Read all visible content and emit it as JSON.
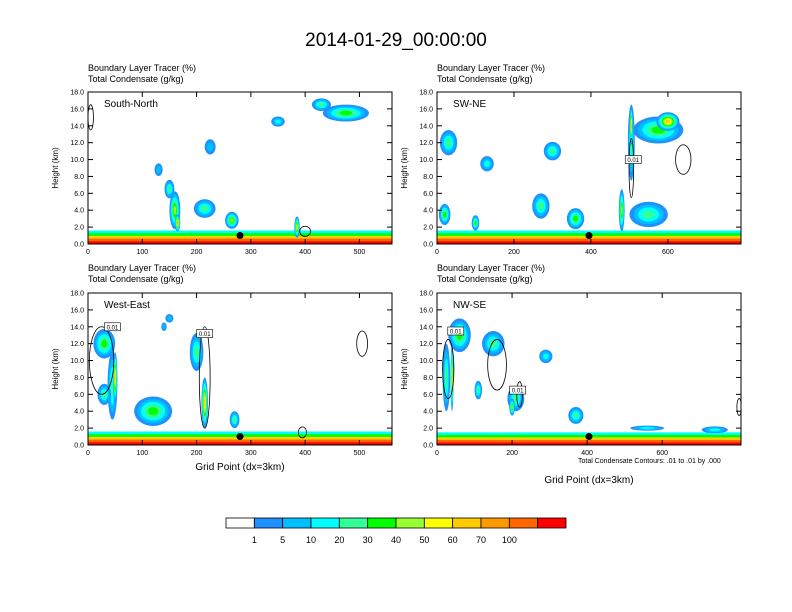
{
  "figure": {
    "title": "2014-01-29_00:00:00",
    "contour_note": "Total Condensate Contours: .01 to .01 by .000"
  },
  "colors": {
    "scale": [
      "#ffffff",
      "#1e90ff",
      "#00bfff",
      "#00ffff",
      "#33ff99",
      "#00ff00",
      "#99ff33",
      "#ffff00",
      "#ffcc00",
      "#ff9900",
      "#ff6600",
      "#ff0000"
    ],
    "contour": "#000000",
    "marker": "#000000"
  },
  "chart_data": [
    {
      "type": "heatmap",
      "label": "South-North",
      "field_label": "Boundary Layer Tracer   (%)",
      "contour_label": "Total Condensate   (g/kg)",
      "ylabel": "Height (km)",
      "xlabel": "",
      "xlim": [
        0,
        560
      ],
      "ylim": [
        0,
        18
      ],
      "xticks": [
        "0",
        "100",
        "200",
        "300",
        "400",
        "500"
      ],
      "yticks": [
        "0.0",
        "2.0",
        "4.0",
        "6.0",
        "8.0",
        "10.0",
        "12.0",
        "14.0",
        "16.0",
        "18.0"
      ],
      "marker": {
        "x": 280,
        "y": 1.0
      },
      "surface_band_top": 1.6,
      "blobs": [
        {
          "x": 160,
          "y": 4.0,
          "w": 20,
          "h": 4.5,
          "level": 6
        },
        {
          "x": 165,
          "y": 2.5,
          "w": 10,
          "h": 2.0,
          "level": 9
        },
        {
          "x": 150,
          "y": 6.5,
          "w": 18,
          "h": 2.2,
          "level": 4
        },
        {
          "x": 215,
          "y": 4.2,
          "w": 40,
          "h": 2.2,
          "level": 4
        },
        {
          "x": 265,
          "y": 2.8,
          "w": 25,
          "h": 2.0,
          "level": 6
        },
        {
          "x": 225,
          "y": 11.5,
          "w": 20,
          "h": 1.8,
          "level": 2
        },
        {
          "x": 130,
          "y": 8.8,
          "w": 15,
          "h": 1.5,
          "level": 2
        },
        {
          "x": 385,
          "y": 2.0,
          "w": 10,
          "h": 2.5,
          "level": 7
        },
        {
          "x": 430,
          "y": 16.5,
          "w": 35,
          "h": 1.5,
          "level": 4
        },
        {
          "x": 475,
          "y": 15.5,
          "w": 85,
          "h": 2.0,
          "level": 5
        },
        {
          "x": 350,
          "y": 14.5,
          "w": 25,
          "h": 1.2,
          "level": 3
        }
      ],
      "contours": [
        {
          "x": 5,
          "y": 15.0,
          "w": 10,
          "h": 3.0
        },
        {
          "x": 400,
          "y": 1.5,
          "w": 20,
          "h": 1.2
        }
      ]
    },
    {
      "type": "heatmap",
      "label": "SW-NE",
      "field_label": "Boundary Layer Tracer   (%)",
      "contour_label": "Total Condensate   (g/kg)",
      "ylabel": "Height (km)",
      "xlabel": "",
      "xlim": [
        0,
        790
      ],
      "ylim": [
        0,
        18
      ],
      "xticks": [
        "0",
        "200",
        "400",
        "600"
      ],
      "yticks": [
        "0.0",
        "2.0",
        "4.0",
        "6.0",
        "8.0",
        "10.0",
        "12.0",
        "14.0",
        "16.0",
        "18.0"
      ],
      "marker": {
        "x": 395,
        "y": 1.0
      },
      "surface_band_top": 1.6,
      "contour_labels": [
        {
          "x": 510,
          "y": 10.0,
          "text": "0.01"
        }
      ],
      "blobs": [
        {
          "x": 575,
          "y": 13.5,
          "w": 130,
          "h": 3.2,
          "level": 5
        },
        {
          "x": 600,
          "y": 14.5,
          "w": 60,
          "h": 2.2,
          "level": 8
        },
        {
          "x": 505,
          "y": 12.0,
          "w": 18,
          "h": 9.0,
          "level": 4
        },
        {
          "x": 505,
          "y": 14.0,
          "w": 8,
          "h": 4.5,
          "level": 9
        },
        {
          "x": 480,
          "y": 4.0,
          "w": 15,
          "h": 5.0,
          "level": 6
        },
        {
          "x": 550,
          "y": 3.5,
          "w": 100,
          "h": 3.0,
          "level": 4
        },
        {
          "x": 30,
          "y": 12.0,
          "w": 45,
          "h": 3.0,
          "level": 4
        },
        {
          "x": 130,
          "y": 9.5,
          "w": 35,
          "h": 1.8,
          "level": 3
        },
        {
          "x": 300,
          "y": 11.0,
          "w": 45,
          "h": 2.2,
          "level": 4
        },
        {
          "x": 270,
          "y": 4.5,
          "w": 45,
          "h": 3.0,
          "level": 4
        },
        {
          "x": 360,
          "y": 3.0,
          "w": 45,
          "h": 2.5,
          "level": 5
        },
        {
          "x": 20,
          "y": 3.5,
          "w": 30,
          "h": 2.5,
          "level": 5
        },
        {
          "x": 100,
          "y": 2.5,
          "w": 20,
          "h": 1.8,
          "level": 5
        }
      ],
      "contours": [
        {
          "x": 640,
          "y": 10.0,
          "w": 40,
          "h": 3.5
        },
        {
          "x": 505,
          "y": 9.0,
          "w": 12,
          "h": 7.0
        }
      ]
    },
    {
      "type": "heatmap",
      "label": "West-East",
      "field_label": "Boundary Layer Tracer   (%)",
      "contour_label": "Total Condensate   (g/kg)",
      "ylabel": "Height (km)",
      "xlabel": "Grid Point (dx=3km)",
      "xlim": [
        0,
        560
      ],
      "ylim": [
        0,
        18
      ],
      "xticks": [
        "0",
        "100",
        "200",
        "300",
        "400",
        "500"
      ],
      "yticks": [
        "0.0",
        "2.0",
        "4.0",
        "6.0",
        "8.0",
        "10.0",
        "12.0",
        "14.0",
        "16.0",
        "18.0"
      ],
      "marker": {
        "x": 280,
        "y": 1.0
      },
      "surface_band_top": 1.6,
      "contour_labels": [
        {
          "x": 45,
          "y": 14.0,
          "text": "0.01"
        },
        {
          "x": 215,
          "y": 13.2,
          "text": "0.01"
        }
      ],
      "blobs": [
        {
          "x": 30,
          "y": 12.0,
          "w": 40,
          "h": 3.5,
          "level": 5
        },
        {
          "x": 45,
          "y": 7.0,
          "w": 18,
          "h": 8.0,
          "level": 4
        },
        {
          "x": 50,
          "y": 8.0,
          "w": 8,
          "h": 6.0,
          "level": 8
        },
        {
          "x": 120,
          "y": 4.0,
          "w": 70,
          "h": 3.5,
          "level": 5
        },
        {
          "x": 30,
          "y": 6.0,
          "w": 25,
          "h": 2.5,
          "level": 4
        },
        {
          "x": 200,
          "y": 11.0,
          "w": 25,
          "h": 4.5,
          "level": 4
        },
        {
          "x": 215,
          "y": 5.0,
          "w": 12,
          "h": 6.0,
          "level": 8
        },
        {
          "x": 150,
          "y": 15.0,
          "w": 15,
          "h": 1.0,
          "level": 2
        },
        {
          "x": 140,
          "y": 14.0,
          "w": 10,
          "h": 1.0,
          "level": 2
        },
        {
          "x": 270,
          "y": 3.0,
          "w": 18,
          "h": 2.0,
          "level": 4
        }
      ],
      "contours": [
        {
          "x": 25,
          "y": 10.0,
          "w": 45,
          "h": 8.0
        },
        {
          "x": 215,
          "y": 8.0,
          "w": 20,
          "h": 12.0
        },
        {
          "x": 505,
          "y": 12.0,
          "w": 20,
          "h": 3.0
        },
        {
          "x": 395,
          "y": 1.5,
          "w": 15,
          "h": 1.3
        }
      ]
    },
    {
      "type": "heatmap",
      "label": "NW-SE",
      "field_label": "Boundary Layer Tracer   (%)",
      "contour_label": "Total Condensate   (g/kg)",
      "ylabel": "Height (km)",
      "xlabel": "Grid Point (dx=3km)",
      "xlim": [
        0,
        810
      ],
      "ylim": [
        0,
        18
      ],
      "xticks": [
        "0",
        "200",
        "400",
        "600"
      ],
      "yticks": [
        "0.0",
        "2.0",
        "4.0",
        "6.0",
        "8.0",
        "10.0",
        "12.0",
        "14.0",
        "16.0",
        "18.0"
      ],
      "marker": {
        "x": 405,
        "y": 1.0
      },
      "surface_band_top": 1.5,
      "contour_labels": [
        {
          "x": 50,
          "y": 13.5,
          "text": "0.01"
        },
        {
          "x": 215,
          "y": 6.5,
          "text": "0.01"
        }
      ],
      "blobs": [
        {
          "x": 60,
          "y": 13.0,
          "w": 60,
          "h": 4.0,
          "level": 5
        },
        {
          "x": 25,
          "y": 8.0,
          "w": 20,
          "h": 8.0,
          "level": 4
        },
        {
          "x": 40,
          "y": 8.0,
          "w": 8,
          "h": 8.0,
          "level": 8
        },
        {
          "x": 150,
          "y": 12.0,
          "w": 60,
          "h": 3.0,
          "level": 4
        },
        {
          "x": 210,
          "y": 5.5,
          "w": 45,
          "h": 3.0,
          "level": 4
        },
        {
          "x": 200,
          "y": 4.5,
          "w": 15,
          "h": 2.0,
          "level": 6
        },
        {
          "x": 110,
          "y": 6.5,
          "w": 20,
          "h": 2.2,
          "level": 4
        },
        {
          "x": 290,
          "y": 10.5,
          "w": 35,
          "h": 1.6,
          "level": 3
        },
        {
          "x": 370,
          "y": 3.5,
          "w": 40,
          "h": 2.0,
          "level": 4
        },
        {
          "x": 740,
          "y": 1.8,
          "w": 70,
          "h": 0.8,
          "level": 3
        },
        {
          "x": 560,
          "y": 2.0,
          "w": 90,
          "h": 0.6,
          "level": 3
        }
      ],
      "contours": [
        {
          "x": 30,
          "y": 9.0,
          "w": 30,
          "h": 7.0
        },
        {
          "x": 160,
          "y": 9.5,
          "w": 50,
          "h": 6.0
        },
        {
          "x": 220,
          "y": 6.0,
          "w": 15,
          "h": 3.0
        },
        {
          "x": 805,
          "y": 4.5,
          "w": 12,
          "h": 2.0
        }
      ]
    }
  ],
  "colorbar": {
    "ticks": [
      "1",
      "5",
      "10",
      "20",
      "30",
      "40",
      "50",
      "60",
      "70",
      "100"
    ]
  }
}
